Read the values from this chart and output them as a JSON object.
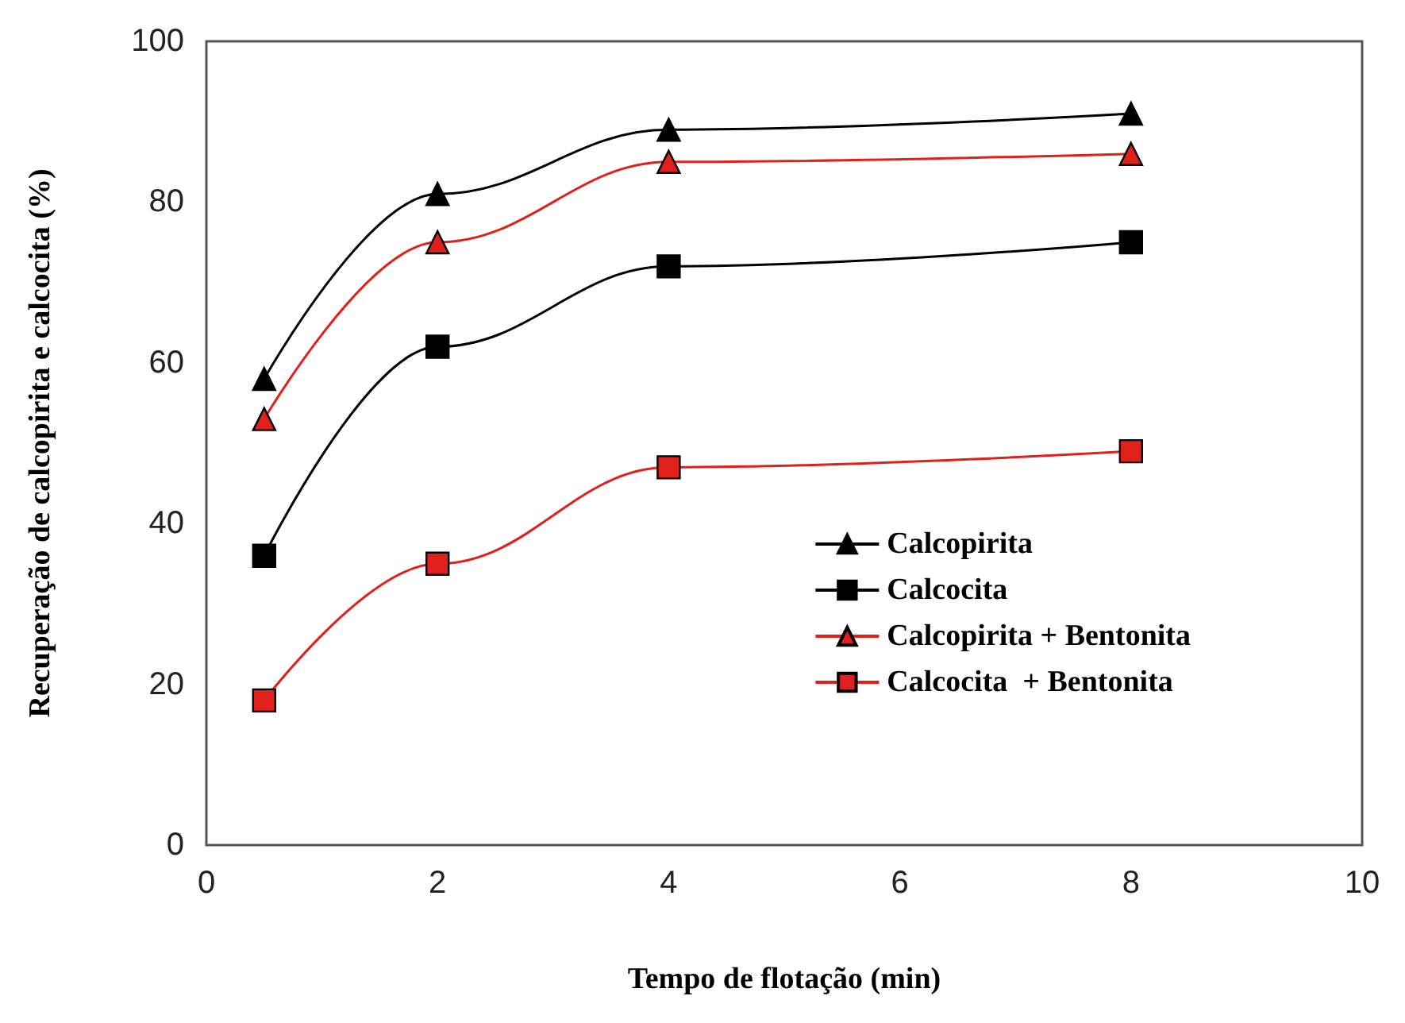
{
  "chart_data": {
    "type": "line",
    "xlabel": "Tempo de flotação (min)",
    "ylabel": "Recuperação de calcopirita e calcocita (%)",
    "xlim": [
      0,
      10
    ],
    "xticks": [
      0,
      2,
      4,
      6,
      8,
      10
    ],
    "ylim": [
      0,
      100
    ],
    "yticks": [
      0,
      20,
      40,
      60,
      80,
      100
    ],
    "grid": false,
    "legend": "bottom right",
    "line_style": "solid",
    "series": [
      {
        "name": "Calcopirita",
        "color": "#000000",
        "marker": "triangle",
        "x": [
          0.5,
          2,
          4,
          8
        ],
        "values": [
          58,
          81,
          89,
          91
        ]
      },
      {
        "name": "Calcocita",
        "color": "#000000",
        "marker": "square",
        "x": [
          0.5,
          2,
          4,
          8
        ],
        "values": [
          36,
          62,
          72,
          75
        ]
      },
      {
        "name": "Calcopirita + Bentonita",
        "color": "#e0201b",
        "marker": "triangle",
        "x": [
          0.5,
          2,
          4,
          8
        ],
        "values": [
          53,
          75,
          85,
          86
        ]
      },
      {
        "name": "Calcocita  + Bentonita",
        "color": "#e0201b",
        "marker": "square",
        "x": [
          0.5,
          2,
          4,
          8
        ],
        "values": [
          18,
          35,
          47,
          49
        ]
      }
    ]
  }
}
